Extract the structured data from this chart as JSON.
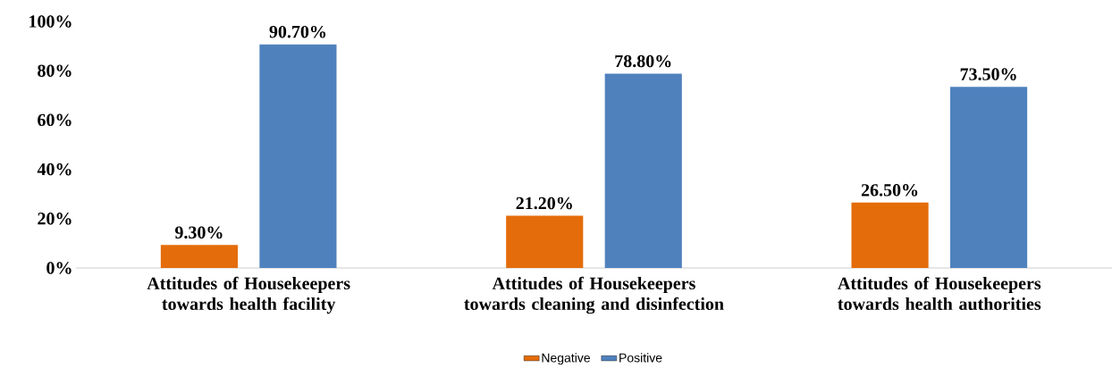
{
  "chart_data": {
    "type": "bar",
    "categories": [
      "Attitudes of Housekeepers towards health facility",
      "Attitudes of Housekeepers towards cleaning and disinfection",
      "Attitudes of Housekeepers towards health authorities"
    ],
    "series": [
      {
        "name": "Negative",
        "color": "#e46c0a",
        "values": [
          9.3,
          21.2,
          26.5
        ],
        "value_labels": [
          "9.30%",
          "21.20%",
          "26.50%"
        ]
      },
      {
        "name": "Positive",
        "color": "#4f81bd",
        "values": [
          90.7,
          78.8,
          73.5
        ],
        "value_labels": [
          "90.70%",
          "78.80%",
          "73.50%"
        ]
      }
    ],
    "ylim": [
      0,
      100
    ],
    "yticks": [
      {
        "value": 0,
        "label": "0%"
      },
      {
        "value": 20,
        "label": "20%"
      },
      {
        "value": 40,
        "label": "40%"
      },
      {
        "value": 60,
        "label": "60%"
      },
      {
        "value": 80,
        "label": "80%"
      },
      {
        "value": 100,
        "label": "100%"
      }
    ],
    "grid": false,
    "legend": "bottom"
  }
}
